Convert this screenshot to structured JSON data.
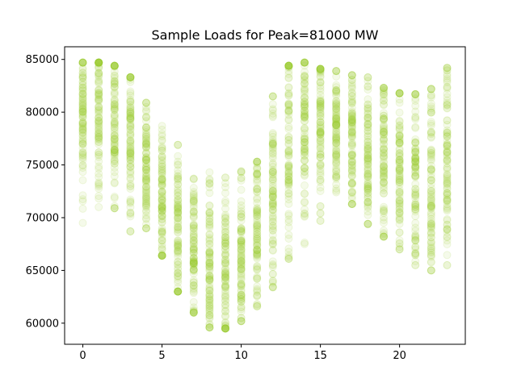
{
  "chart_data": {
    "type": "scatter",
    "title": "Sample Loads for Peak=81000 MW",
    "xlabel": "",
    "ylabel": "",
    "xlim": [
      -1.15,
      24.15
    ],
    "ylim": [
      58000,
      86200
    ],
    "x_ticks": [
      0,
      5,
      10,
      15,
      20
    ],
    "y_ticks": [
      60000,
      65000,
      70000,
      75000,
      80000,
      85000
    ],
    "marker_color": "#9acd32",
    "marker_alpha": 0.1,
    "grid": false,
    "series": [
      {
        "hours": [
          0,
          1,
          2,
          3,
          4,
          5,
          6,
          7,
          8,
          9,
          10,
          11,
          12,
          13,
          14,
          15,
          16,
          17,
          18,
          19,
          20,
          21,
          22,
          23
        ],
        "typical_load": [
          79500,
          80500,
          79500,
          77500,
          74800,
          71800,
          68800,
          66400,
          64600,
          64600,
          66400,
          68800,
          73000,
          77200,
          79600,
          78800,
          78400,
          77400,
          76400,
          75600,
          74900,
          74300,
          74000,
          75900
        ],
        "min_load": [
          69500,
          71000,
          70900,
          68700,
          69000,
          66400,
          63000,
          61000,
          59600,
          59500,
          60200,
          61600,
          63400,
          66100,
          67500,
          69700,
          72400,
          71300,
          69400,
          68200,
          67000,
          65500,
          65000,
          65500
        ],
        "max_load": [
          84700,
          84700,
          84400,
          83300,
          80900,
          78700,
          76900,
          73700,
          74300,
          73800,
          74400,
          75300,
          81500,
          84400,
          84700,
          84100,
          83900,
          83500,
          83300,
          82300,
          81800,
          81700,
          82200,
          84200
        ]
      }
    ]
  }
}
